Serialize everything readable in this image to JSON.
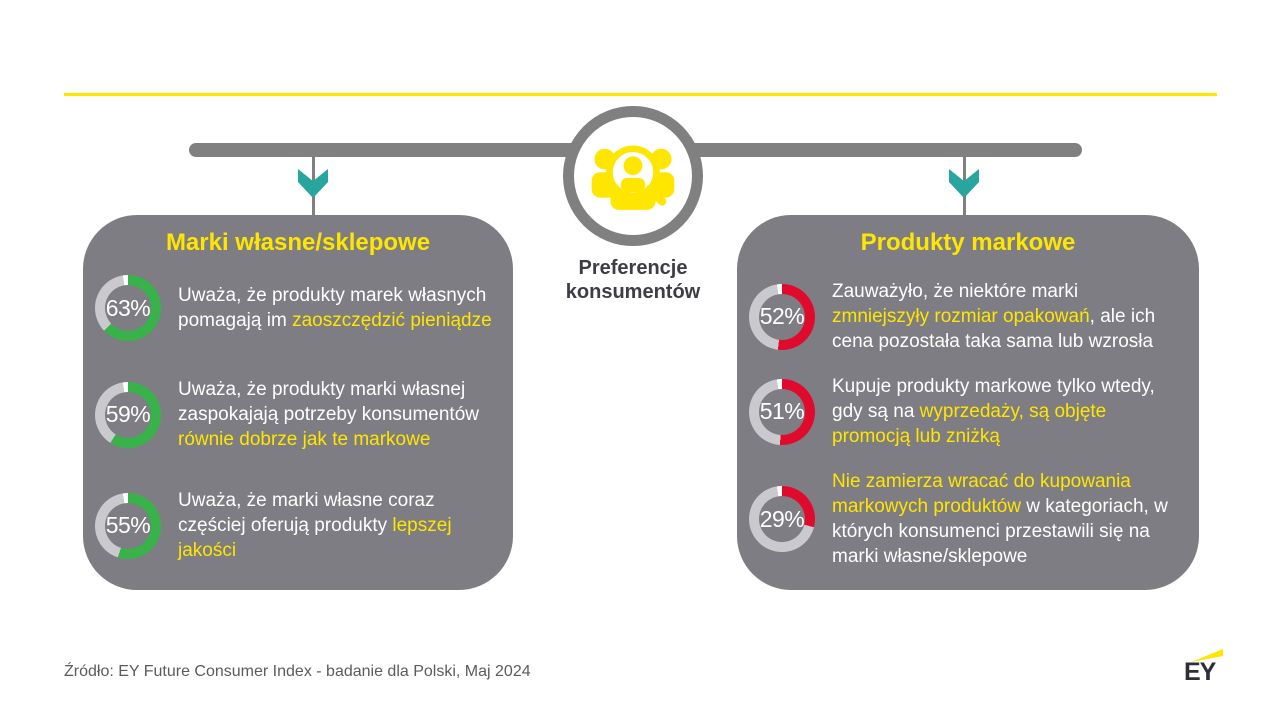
{
  "center": {
    "label_line1": "Preferencje",
    "label_line2": "konsumentów",
    "icon": "consumers-magnifier-icon"
  },
  "panels": [
    {
      "id": "private-store-brands",
      "title": "Marki własne/sklepowe",
      "accent": "#37b34a",
      "stats": [
        {
          "pct": 63,
          "label": "63%",
          "segments": [
            {
              "t": "Uważa, że produkty marek własnych pomagają im ",
              "h": false
            },
            {
              "t": "zaoszczędzić pieniądze",
              "h": true
            }
          ]
        },
        {
          "pct": 59,
          "label": "59%",
          "segments": [
            {
              "t": "Uważa, że produkty marki własnej zaspokajają potrzeby konsumentów ",
              "h": false
            },
            {
              "t": "równie dobrze jak te markowe",
              "h": true
            }
          ]
        },
        {
          "pct": 55,
          "label": "55%",
          "segments": [
            {
              "t": "Uważa, że marki własne coraz częściej oferują produkty ",
              "h": false
            },
            {
              "t": "lepszej jakości",
              "h": true
            }
          ]
        }
      ]
    },
    {
      "id": "branded-products",
      "title": "Produkty markowe",
      "accent": "#e00b2c",
      "stats": [
        {
          "pct": 52,
          "label": "52%",
          "segments": [
            {
              "t": "Zauważyło, że niektóre marki ",
              "h": false
            },
            {
              "t": "zmniejszyły rozmiar opakowań",
              "h": true
            },
            {
              "t": ", ale ich cena pozostała taka sama lub wzrosła",
              "h": false
            }
          ]
        },
        {
          "pct": 51,
          "label": "51%",
          "segments": [
            {
              "t": "Kupuje produkty markowe tylko wtedy, gdy są na ",
              "h": false
            },
            {
              "t": "wyprzedaży, są objęte promocją lub zniżką",
              "h": true
            }
          ]
        },
        {
          "pct": 29,
          "label": "29%",
          "segments": [
            {
              "t": "Nie zamierza wracać do kupowania markowych produktów",
              "h": true
            },
            {
              "t": " w kategoriach, w których konsumenci przestawili się na marki własne/sklepowe",
              "h": false
            }
          ]
        }
      ]
    }
  ],
  "footer": {
    "source": "Źródło: EY Future Consumer Index - badanie dla Polski, Maj 2024",
    "logo": "EY"
  },
  "colors": {
    "accent_yellow": "#ffe600",
    "teal_arrow": "#27a59e",
    "green_arc": "#37b34a",
    "red_arc": "#e00b2c",
    "panel_gray": "#7d7d83",
    "connector_gray": "#808080",
    "track_gray": "#cacace",
    "notch_white": "#ffffff"
  },
  "chart_data": [
    {
      "type": "pie",
      "title": "Marki własne/sklepowe",
      "labels": [
        "Uważa, że produkty marek własnych pomagają im zaoszczędzić pieniądze",
        "Uważa, że produkty marki własnej zaspokajają potrzeby konsumentów równie dobrze jak te markowe",
        "Uważa, że marki własne coraz częściej oferują produkty lepszej jakości"
      ],
      "values": [
        63,
        59,
        55
      ],
      "unit": "%",
      "color": "#37b34a",
      "style": "donut-gauges, value starts at 12 o'clock clockwise"
    },
    {
      "type": "pie",
      "title": "Produkty markowe",
      "labels": [
        "Zauważyło, że niektóre marki zmniejszyły rozmiar opakowań, ale ich cena pozostała taka sama lub wzrosła",
        "Kupuje produkty markowe tylko wtedy, gdy są na wyprzedaży, są objęte promocją lub zniżką",
        "Nie zamierza wracać do kupowania markowych produktów w kategoriach, w których konsumenci przestawili się na marki własne/sklepowe"
      ],
      "values": [
        52,
        51,
        29
      ],
      "unit": "%",
      "color": "#e00b2c",
      "style": "donut-gauges, value starts at 12 o'clock clockwise"
    }
  ]
}
